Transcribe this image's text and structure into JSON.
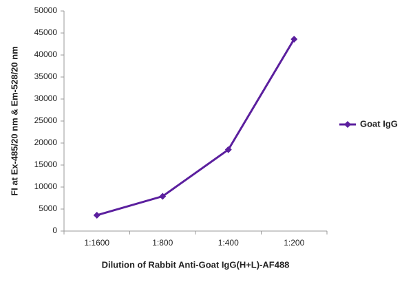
{
  "chart_data": {
    "type": "line",
    "x_label": "Dilution of Rabbit Anti-Goat IgG(H+L)-AF488",
    "y_label": "FI at Ex-485/20 nm & Em-528/20 nm",
    "categories": [
      "1:1600",
      "1:800",
      "1:400",
      "1:200"
    ],
    "series": [
      {
        "name": "Goat IgG",
        "color": "#5b1f9e",
        "values": [
          3600,
          7900,
          18500,
          43600
        ]
      }
    ],
    "ylim": [
      0,
      50000
    ],
    "yticks": [
      0,
      5000,
      10000,
      15000,
      20000,
      25000,
      30000,
      35000,
      40000,
      45000,
      50000
    ],
    "grid": false,
    "legend": "right"
  }
}
